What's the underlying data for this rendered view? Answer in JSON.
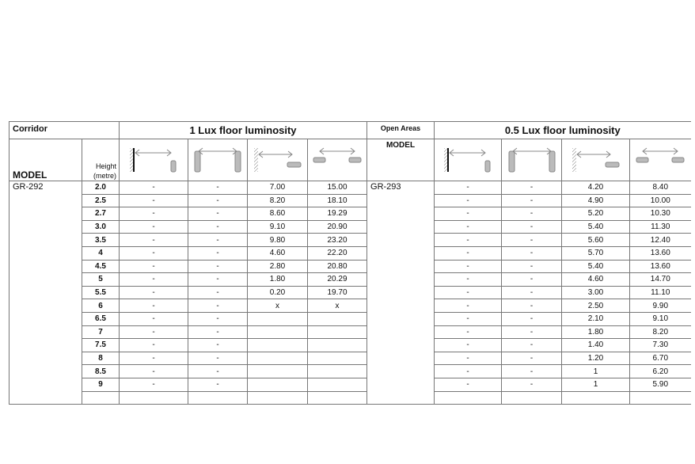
{
  "left": {
    "section": "Corridor",
    "title": "1 Lux floor luminosity",
    "model_label": "MODEL",
    "height_label": "Height (metre)",
    "model": "GR-292",
    "icons": [
      "wall-to-pillar-icon",
      "pillar-to-pillar-icon",
      "wall-to-ceiling-icon",
      "ceiling-to-ceiling-icon"
    ],
    "rows": [
      [
        "2.0",
        "-",
        "-",
        "7.00",
        "15.00"
      ],
      [
        "2.5",
        "-",
        "-",
        "8.20",
        "18.10"
      ],
      [
        "2.7",
        "-",
        "-",
        "8.60",
        "19.29"
      ],
      [
        "3.0",
        "-",
        "-",
        "9.10",
        "20.90"
      ],
      [
        "3.5",
        "-",
        "-",
        "9.80",
        "23.20"
      ],
      [
        "4",
        "-",
        "-",
        "4.60",
        "22.20"
      ],
      [
        "4.5",
        "-",
        "-",
        "2.80",
        "20.80"
      ],
      [
        "5",
        "-",
        "-",
        "1.80",
        "20.29"
      ],
      [
        "5.5",
        "-",
        "-",
        "0.20",
        "19.70"
      ],
      [
        "6",
        "-",
        "-",
        "x",
        "x"
      ],
      [
        "6.5",
        "-",
        "-",
        "",
        ""
      ],
      [
        "7",
        "-",
        "-",
        "",
        ""
      ],
      [
        "7.5",
        "-",
        "-",
        "",
        ""
      ],
      [
        "8",
        "-",
        "-",
        "",
        ""
      ],
      [
        "8.5",
        "-",
        "-",
        "",
        ""
      ],
      [
        "9",
        "-",
        "-",
        "",
        ""
      ],
      [
        "",
        "",
        "",
        "",
        ""
      ]
    ]
  },
  "right": {
    "section": "Open Areas",
    "title": "0.5 Lux floor luminosity",
    "model_label": "MODEL",
    "model": "GR-293",
    "icons": [
      "wall-to-pillar-icon",
      "pillar-to-pillar-icon",
      "wall-to-ceiling-icon",
      "ceiling-to-ceiling-icon"
    ],
    "rows": [
      [
        "-",
        "-",
        "4.20",
        "8.40"
      ],
      [
        "-",
        "-",
        "4.90",
        "10.00"
      ],
      [
        "-",
        "-",
        "5.20",
        "10.30"
      ],
      [
        "-",
        "-",
        "5.40",
        "11.30"
      ],
      [
        "-",
        "-",
        "5.60",
        "12.40"
      ],
      [
        "-",
        "-",
        "5.70",
        "13.60"
      ],
      [
        "-",
        "-",
        "5.40",
        "13.60"
      ],
      [
        "-",
        "-",
        "4.60",
        "14.70"
      ],
      [
        "-",
        "-",
        "3.00",
        "11.10"
      ],
      [
        "-",
        "-",
        "2.50",
        "9.90"
      ],
      [
        "-",
        "-",
        "2.10",
        "9.10"
      ],
      [
        "-",
        "-",
        "1.80",
        "8.20"
      ],
      [
        "-",
        "-",
        "1.40",
        "7.30"
      ],
      [
        "-",
        "-",
        "1.20",
        "6.70"
      ],
      [
        "-",
        "-",
        "1",
        "6.20"
      ],
      [
        "-",
        "-",
        "1",
        "5.90"
      ],
      [
        "",
        "",
        "",
        ""
      ]
    ]
  }
}
